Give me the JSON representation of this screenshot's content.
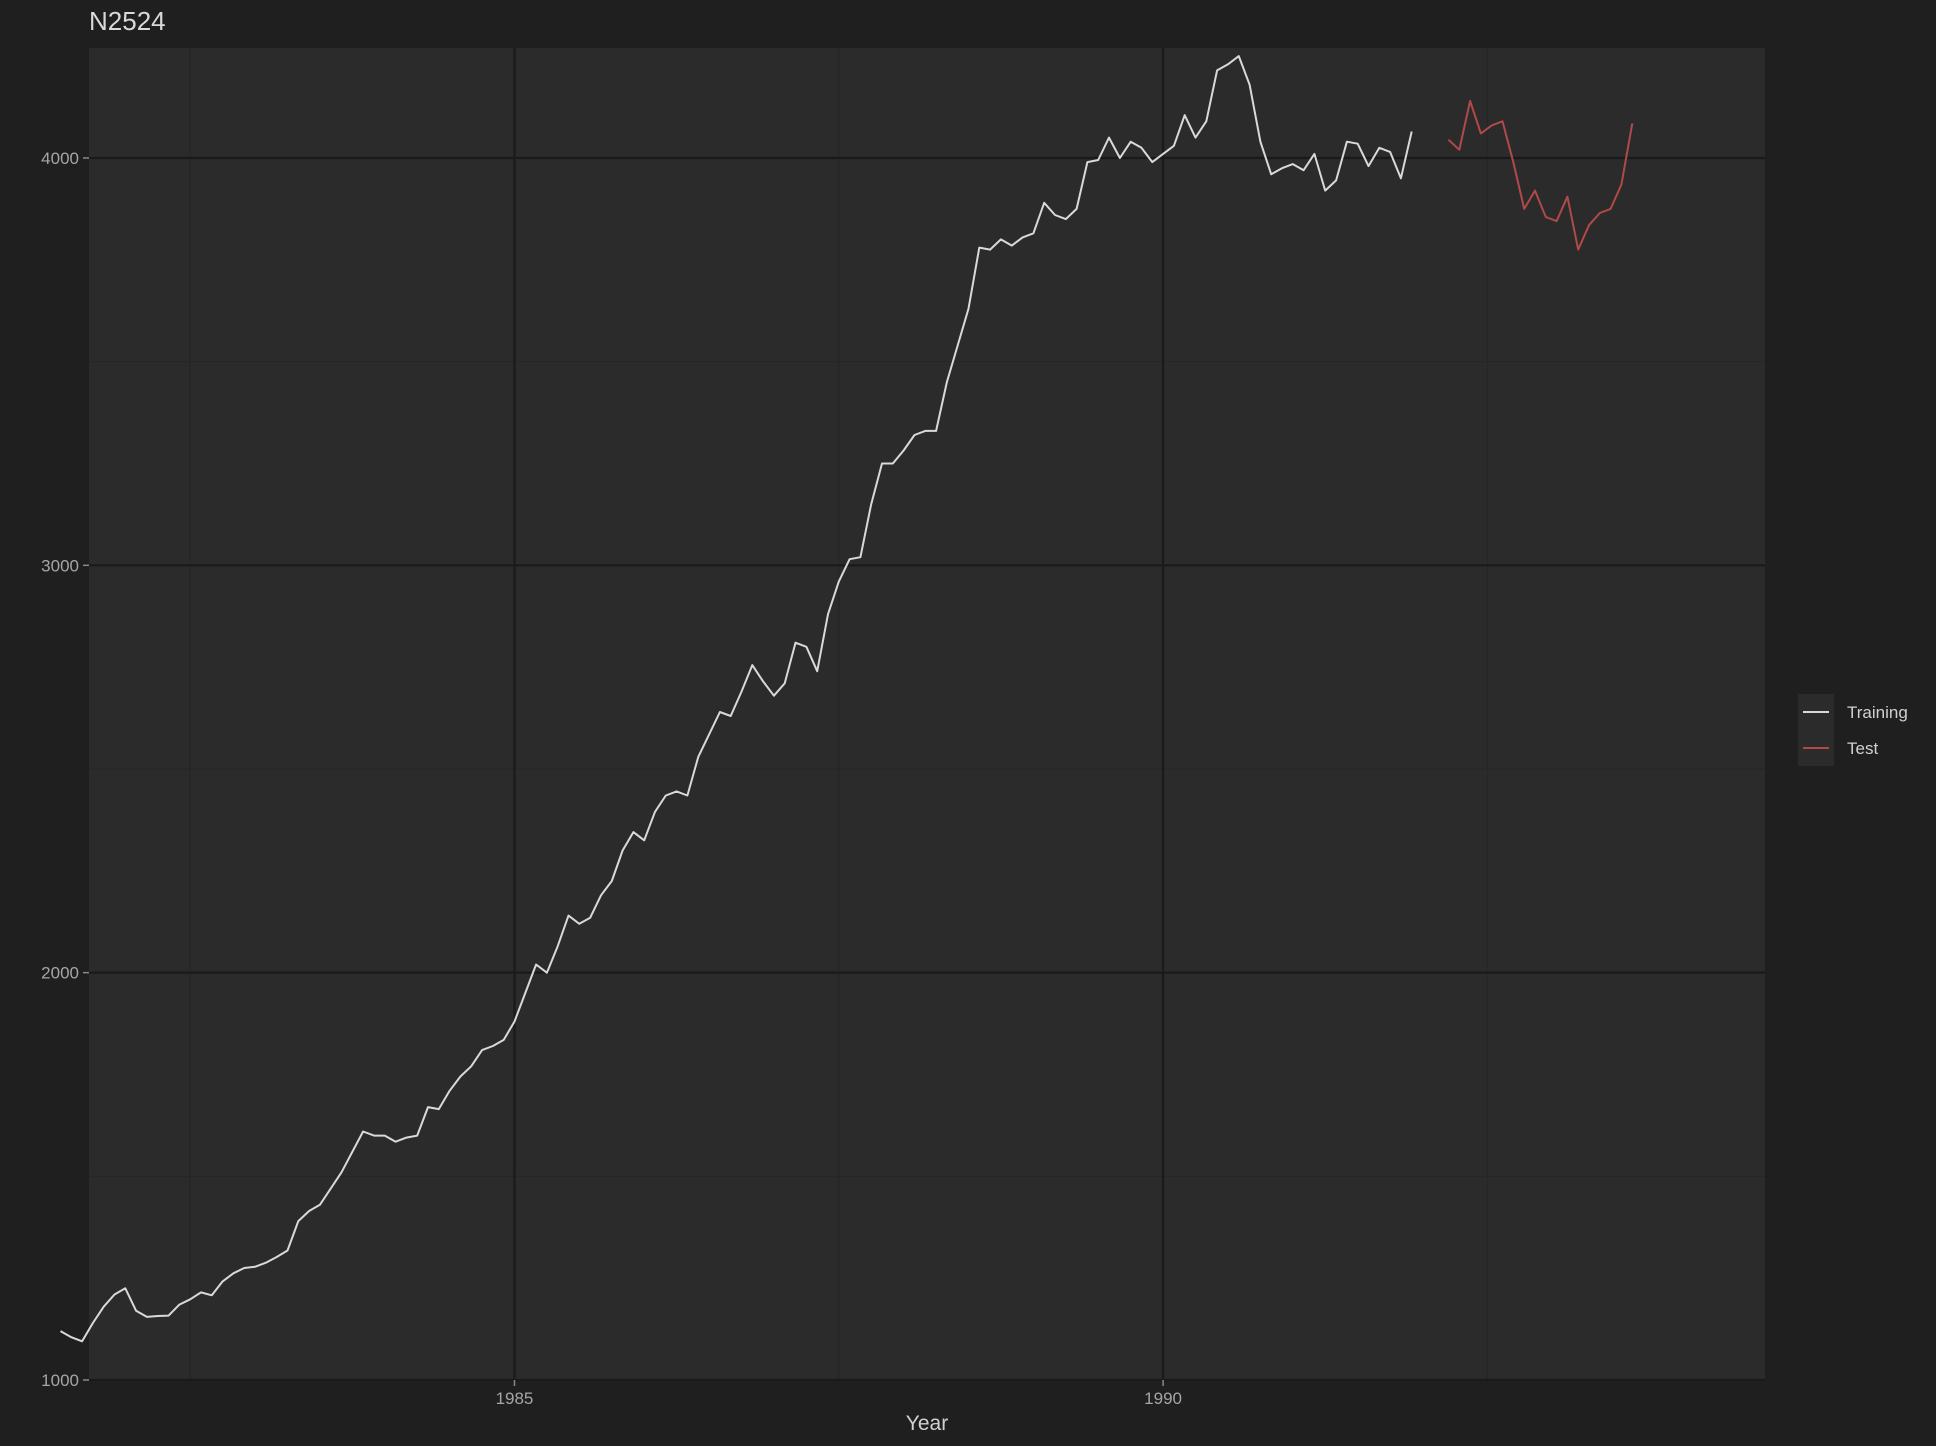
{
  "chart_data": {
    "type": "line",
    "title": "N2524",
    "xlabel": "Year",
    "ylabel": "",
    "xlim": [
      1981.72,
      1994.64
    ],
    "ylim": [
      1000,
      4270
    ],
    "x_ticks": [
      1985,
      1990
    ],
    "y_ticks": [
      1000,
      2000,
      3000,
      4000
    ],
    "grid": true,
    "legend_position": "right",
    "colors": {
      "background": "#1f1f1f",
      "panel": "#2b2b2b",
      "grid_major": "#1a1a1a",
      "grid_minor": "#262626",
      "Training": "#d9d9d9",
      "Test": "#b04a4a"
    },
    "series": [
      {
        "name": "Training",
        "x_start": 1981.5,
        "step": 0.0833333,
        "values": [
          1120,
          1105,
          1095,
          1140,
          1180,
          1210,
          1225,
          1170,
          1155,
          1157,
          1158,
          1185,
          1198,
          1215,
          1208,
          1242,
          1262,
          1275,
          1278,
          1288,
          1302,
          1318,
          1390,
          1415,
          1430,
          1470,
          1510,
          1560,
          1610,
          1600,
          1600,
          1585,
          1595,
          1600,
          1670,
          1665,
          1710,
          1745,
          1770,
          1810,
          1820,
          1835,
          1880,
          1950,
          2020,
          2000,
          2065,
          2140,
          2120,
          2135,
          2190,
          2225,
          2300,
          2345,
          2325,
          2395,
          2435,
          2445,
          2435,
          2530,
          2585,
          2640,
          2630,
          2690,
          2755,
          2715,
          2680,
          2710,
          2810,
          2800,
          2740,
          2880,
          2960,
          3015,
          3020,
          3150,
          3250,
          3250,
          3282,
          3320,
          3330,
          3330,
          3450,
          3540,
          3630,
          3780,
          3775,
          3800,
          3785,
          3805,
          3815,
          3890,
          3860,
          3850,
          3875,
          3990,
          3995,
          4050,
          4000,
          4040,
          4025,
          3990,
          4010,
          4030,
          4105,
          4050,
          4090,
          4215,
          4230,
          4250,
          4180,
          4040,
          3960,
          3975,
          3985,
          3970,
          4010,
          3920,
          3945,
          4040,
          4035,
          3980,
          4025,
          4015,
          3950,
          4065
        ]
      },
      {
        "name": "Test",
        "x_start": 1992.2,
        "step": 0.0833333,
        "values": [
          4045,
          4020,
          4140,
          4060,
          4080,
          4090,
          3990,
          3875,
          3920,
          3855,
          3845,
          3905,
          3775,
          3835,
          3865,
          3875,
          3935,
          4085
        ]
      }
    ]
  }
}
